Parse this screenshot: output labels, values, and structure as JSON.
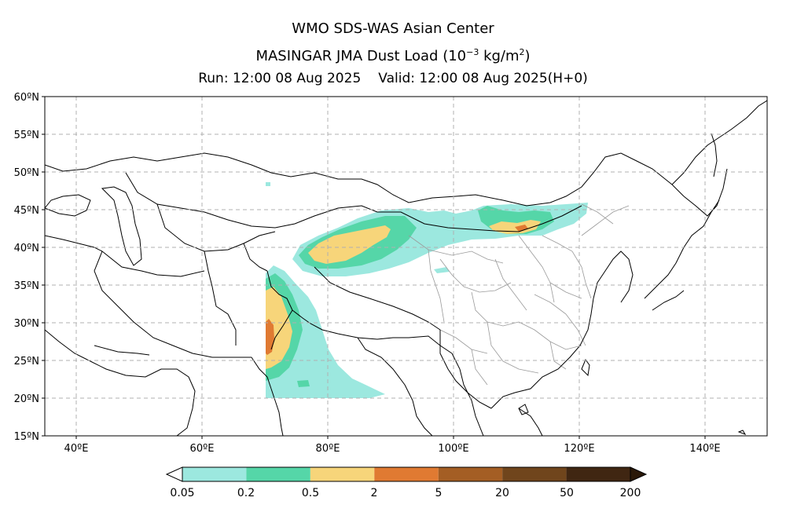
{
  "header": {
    "center": "WMO SDS-WAS Asian Center",
    "product": "MASINGAR JMA Dust Load (10",
    "exponent": "−3",
    "unit_mid": " kg/m",
    "unit_exp": "2",
    "unit_close": ")",
    "run": "Run: 12:00 08 Aug 2025",
    "valid": "Valid: 12:00 08 Aug 2025(H+0)"
  },
  "axes": {
    "y_ticks": [
      "60ºN",
      "55ºN",
      "50ºN",
      "45ºN",
      "40ºN",
      "35ºN",
      "30ºN",
      "25ºN",
      "20ºN",
      "15ºN"
    ],
    "x_ticks": [
      "40ºE",
      "60ºE",
      "80ºE",
      "100ºE",
      "120ºE",
      "140ºE"
    ]
  },
  "colorbar": {
    "labels": [
      "0.05",
      "0.2",
      "0.5",
      "2",
      "5",
      "20",
      "50",
      "200"
    ],
    "colors": [
      "#9ce8df",
      "#55d6a8",
      "#f7d57a",
      "#e07a32",
      "#a45e24",
      "#70451c",
      "#402612"
    ]
  },
  "map": {
    "region": "Asia 35ºE–150ºE, 15ºN–60ºN",
    "dust_categories": [
      {
        "range": "0.05–0.2",
        "color": "#9ce8df"
      },
      {
        "range": "0.2–0.5",
        "color": "#55d6a8"
      },
      {
        "range": "0.5–2",
        "color": "#f7d57a"
      },
      {
        "range": "2–5",
        "color": "#e07a32"
      }
    ]
  }
}
